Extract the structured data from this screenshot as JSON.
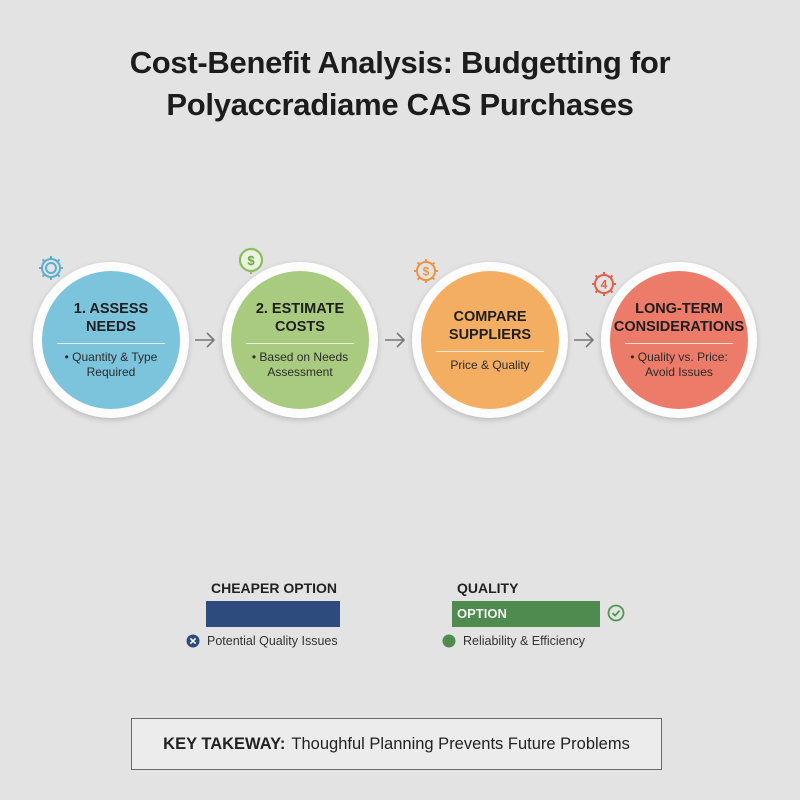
{
  "title": {
    "line1": "Cost-Benefit Analysis: Budgetting for",
    "line2": "Polyaccradiame CAS Purchases"
  },
  "steps": [
    {
      "title": "1. Assess Needs",
      "desc": "• Quantity & Type Required",
      "icon": "gear-icon",
      "color": "#7cc3dc"
    },
    {
      "title": "2. Estimate Costs",
      "desc": "• Based on Needs Assessment",
      "icon": "dollar-bulb-icon",
      "color": "#a9cb7f"
    },
    {
      "title": "Compare Suppliers",
      "desc": "Price & Quality",
      "icon": "gear-dollar-icon",
      "color": "#f4ae62"
    },
    {
      "title": "Long-Term Considerations",
      "desc": "• Quality vs. Price: Avoid Issues",
      "icon": "gear-four-icon",
      "color": "#ec7b6a"
    }
  ],
  "options": {
    "cheaper": {
      "label": "CHEAPER OPTION",
      "note": "Potential Quality Issues",
      "color": "#2d4b7d"
    },
    "quality": {
      "label": "QUALITY",
      "bar_text": "OPTION",
      "note": "Reliability & Efficiency",
      "color": "#4f8a4e"
    }
  },
  "takeaway": {
    "label": "KEY TAKEWAY:",
    "text": "Thoughful Planning Prevents Future Problems"
  }
}
